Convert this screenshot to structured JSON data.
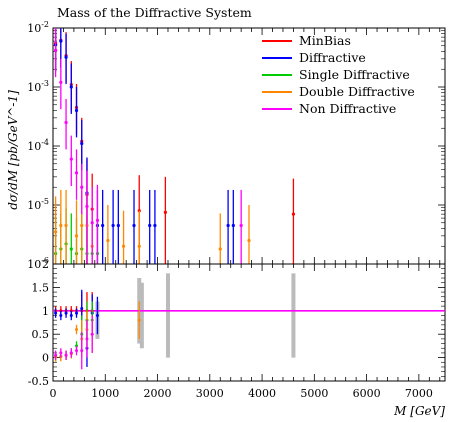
{
  "chart_data": {
    "type": "scatter",
    "title": "Mass of the Diffractive System",
    "xlabel": "M [GeV]",
    "ylabel": "dσ/dM [pb/GeV^-1]",
    "xlim": [
      0,
      7500
    ],
    "ylim": [
      1e-06,
      0.01
    ],
    "yscale": "log",
    "ratio_ylim": [
      -0.5,
      2
    ],
    "legend_position": "top-right",
    "x_ticks": [
      "0",
      "1000",
      "2000",
      "3000",
      "4000",
      "5000",
      "6000",
      "7000"
    ],
    "y_ticks_main": [
      "10^-6",
      "10^-5",
      "10^-4",
      "10^-3",
      "10^-2"
    ],
    "y_ticks_ratio": [
      "-0.5",
      "0",
      "0.5",
      "1",
      "1.5",
      "2"
    ],
    "series": [
      {
        "name": "MinBias",
        "color": "#ff0000",
        "points": [
          {
            "x": 50,
            "y": 0.0055
          },
          {
            "x": 150,
            "y": 0.0062
          },
          {
            "x": 250,
            "y": 0.0034
          },
          {
            "x": 350,
            "y": 0.0011
          },
          {
            "x": 450,
            "y": 0.00045
          },
          {
            "x": 550,
            "y": 0.00012
          },
          {
            "x": 650,
            "y": 1.5e-05
          },
          {
            "x": 750,
            "y": 8.5e-06
          },
          {
            "x": 1650,
            "y": 8e-06
          },
          {
            "x": 2150,
            "y": 7.5e-06
          },
          {
            "x": 4600,
            "y": 7e-06
          }
        ]
      },
      {
        "name": "Diffractive",
        "color": "#0000ff",
        "points": [
          {
            "x": 50,
            "y": 0.0052
          },
          {
            "x": 150,
            "y": 0.006
          },
          {
            "x": 250,
            "y": 0.0032
          },
          {
            "x": 350,
            "y": 0.001
          },
          {
            "x": 450,
            "y": 0.0004
          },
          {
            "x": 550,
            "y": 0.00011
          },
          {
            "x": 650,
            "y": 1.6e-05
          },
          {
            "x": 850,
            "y": 4.5e-06
          },
          {
            "x": 950,
            "y": 4.5e-06
          },
          {
            "x": 1150,
            "y": 4.5e-06
          },
          {
            "x": 1250,
            "y": 4.5e-06
          },
          {
            "x": 1550,
            "y": 4.5e-06
          },
          {
            "x": 1850,
            "y": 4.5e-06
          },
          {
            "x": 1950,
            "y": 4.5e-06
          },
          {
            "x": 3350,
            "y": 4.5e-06
          },
          {
            "x": 3450,
            "y": 4.5e-06
          }
        ]
      },
      {
        "name": "Single Diffractive",
        "color": "#00cc00",
        "points": [
          {
            "x": 50,
            "y": 1.5e-06
          },
          {
            "x": 150,
            "y": 1.8e-06
          },
          {
            "x": 250,
            "y": 2.2e-06
          },
          {
            "x": 350,
            "y": 1.8e-06
          },
          {
            "x": 450,
            "y": 1.5e-06
          },
          {
            "x": 550,
            "y": 1.8e-06
          },
          {
            "x": 650,
            "y": 1.5e-06
          },
          {
            "x": 750,
            "y": 1.5e-06
          },
          {
            "x": 850,
            "y": 1.5e-06
          }
        ]
      },
      {
        "name": "Double Diffractive",
        "color": "#ff8800",
        "points": [
          {
            "x": 50,
            "y": 3.5e-06
          },
          {
            "x": 150,
            "y": 4.5e-06
          },
          {
            "x": 250,
            "y": 4.5e-06
          },
          {
            "x": 450,
            "y": 3e-06
          },
          {
            "x": 550,
            "y": 4.5e-06
          },
          {
            "x": 650,
            "y": 4.5e-06
          },
          {
            "x": 750,
            "y": 2e-06
          },
          {
            "x": 1050,
            "y": 2.5e-06
          },
          {
            "x": 1350,
            "y": 2e-06
          },
          {
            "x": 1650,
            "y": 2e-06
          },
          {
            "x": 3200,
            "y": 1.8e-06
          },
          {
            "x": 3750,
            "y": 2.5e-06
          }
        ]
      },
      {
        "name": "Non Diffractive",
        "color": "#ff00ff",
        "points": [
          {
            "x": 50,
            "y": 0.0042
          },
          {
            "x": 150,
            "y": 0.0012
          },
          {
            "x": 250,
            "y": 0.00025
          },
          {
            "x": 350,
            "y": 6e-05
          },
          {
            "x": 450,
            "y": 3.5e-05
          },
          {
            "x": 550,
            "y": 2e-05
          },
          {
            "x": 650,
            "y": 9.5e-06
          },
          {
            "x": 750,
            "y": 5e-06
          },
          {
            "x": 850,
            "y": 5.5e-06
          },
          {
            "x": 3600,
            "y": 4.5e-06
          }
        ]
      }
    ],
    "ratio_series": [
      {
        "name": "MinBias",
        "color": "#ff0000",
        "points": [
          {
            "x": 50,
            "y": 1
          },
          {
            "x": 150,
            "y": 1
          },
          {
            "x": 250,
            "y": 1
          },
          {
            "x": 350,
            "y": 1
          },
          {
            "x": 450,
            "y": 1
          },
          {
            "x": 550,
            "y": 1
          },
          {
            "x": 650,
            "y": 1
          },
          {
            "x": 750,
            "y": 1
          }
        ]
      },
      {
        "name": "Diffractive",
        "color": "#0000ff",
        "points": [
          {
            "x": 50,
            "y": 0.95
          },
          {
            "x": 150,
            "y": 0.9
          },
          {
            "x": 250,
            "y": 0.95
          },
          {
            "x": 350,
            "y": 0.9
          },
          {
            "x": 450,
            "y": 0.95
          },
          {
            "x": 550,
            "y": 1.05
          },
          {
            "x": 650,
            "y": 0.2
          },
          {
            "x": 750,
            "y": 0.95
          },
          {
            "x": 850,
            "y": 0.9
          }
        ]
      },
      {
        "name": "Single Diffractive",
        "color": "#00cc00",
        "points": [
          {
            "x": 50,
            "y": 0.02
          },
          {
            "x": 150,
            "y": 0.03
          },
          {
            "x": 250,
            "y": 0.05
          },
          {
            "x": 350,
            "y": 0.1
          },
          {
            "x": 450,
            "y": 0.25
          },
          {
            "x": 550,
            "y": 0.5
          },
          {
            "x": 650,
            "y": 0.8
          },
          {
            "x": 750,
            "y": 0.8
          }
        ]
      },
      {
        "name": "Double Diffractive",
        "color": "#ff8800",
        "points": [
          {
            "x": 50,
            "y": 0.01
          },
          {
            "x": 150,
            "y": 0.02
          },
          {
            "x": 250,
            "y": 0.05
          },
          {
            "x": 350,
            "y": 0.08
          },
          {
            "x": 450,
            "y": 0.6
          },
          {
            "x": 550,
            "y": 0.4
          },
          {
            "x": 650,
            "y": 0.6
          },
          {
            "x": 750,
            "y": 0.5
          },
          {
            "x": 1650,
            "y": 0.8
          }
        ]
      },
      {
        "name": "Non Diffractive",
        "color": "#ff00ff",
        "points": [
          {
            "x": 50,
            "y": 0.05
          },
          {
            "x": 150,
            "y": 0.1
          },
          {
            "x": 250,
            "y": 0.05
          },
          {
            "x": 350,
            "y": 0.1
          },
          {
            "x": 450,
            "y": 0.15
          },
          {
            "x": 550,
            "y": 0.15
          },
          {
            "x": 650,
            "y": 0.4
          },
          {
            "x": 750,
            "y": 0.5
          }
        ]
      }
    ],
    "ratio_reference_color": "#ff00ff",
    "ratio_reference_value": 1
  }
}
